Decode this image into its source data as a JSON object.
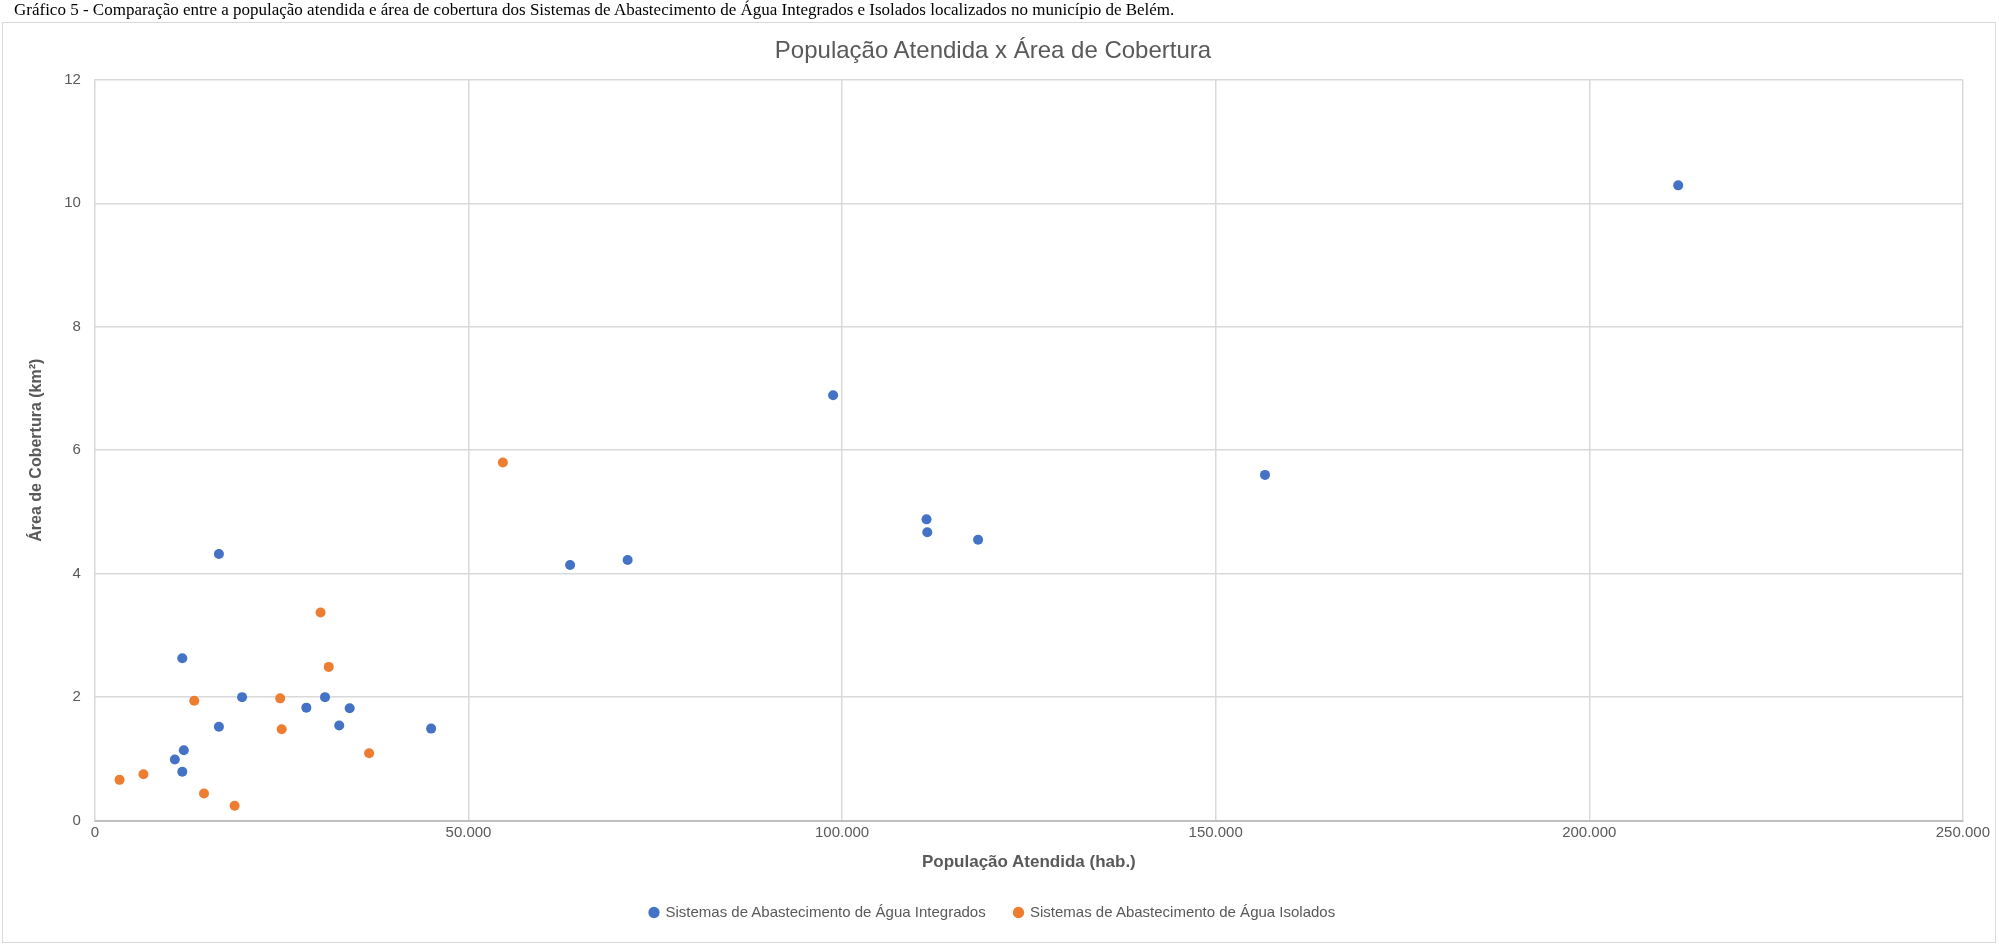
{
  "chart_data": {
    "type": "scatter",
    "title": "População Atendida x Área de Cobertura",
    "xlabel": "População Atendida (hab.)",
    "ylabel": "Área de Cobertura (km²)",
    "annotations": [
      "Gráfico 5 - Comparação entre a população atendida e área de cobertura dos Sistemas de Abastecimento de Água Integrados e Isolados localizados no município de Belém."
    ],
    "xlim": [
      0,
      250000
    ],
    "xticks": [
      0,
      {
        "value": 50000,
        "label": "50.000"
      },
      {
        "value": 100000,
        "label": "100.000"
      },
      {
        "value": 150000,
        "label": "150.000"
      },
      {
        "value": 200000,
        "label": "200.000"
      },
      {
        "value": 250000,
        "label": "250.000"
      }
    ],
    "ylim": [
      0,
      12
    ],
    "yticks": [
      0,
      2,
      4,
      6,
      8,
      10,
      12
    ],
    "grid": true,
    "legend": "bottom",
    "marker": "circle",
    "series": [
      {
        "name": "Sistemas de Abastecimento de Água Integrados",
        "color": "#4472c4",
        "x": [
          10700,
          11700,
          11900,
          11700,
          16600,
          16600,
          19700,
          28300,
          30800,
          32700,
          34100,
          45000,
          63600,
          71300,
          98800,
          111300,
          111400,
          118200,
          156600,
          211900
        ],
        "values": [
          0.99,
          0.79,
          1.14,
          2.63,
          1.52,
          4.32,
          2.0,
          1.83,
          2.0,
          1.54,
          1.82,
          1.49,
          4.14,
          4.22,
          6.89,
          4.88,
          4.67,
          4.55,
          5.6,
          10.29
        ]
      },
      {
        "name": "Sistemas de Abastecimento de Água Isolados",
        "color": "#ed7d31",
        "x": [
          3300,
          6500,
          13300,
          14600,
          18700,
          24800,
          25000,
          30200,
          31300,
          36700,
          54600
        ],
        "values": [
          0.66,
          0.75,
          1.94,
          0.44,
          0.24,
          1.98,
          1.48,
          3.37,
          2.49,
          1.09,
          5.8
        ]
      }
    ]
  }
}
